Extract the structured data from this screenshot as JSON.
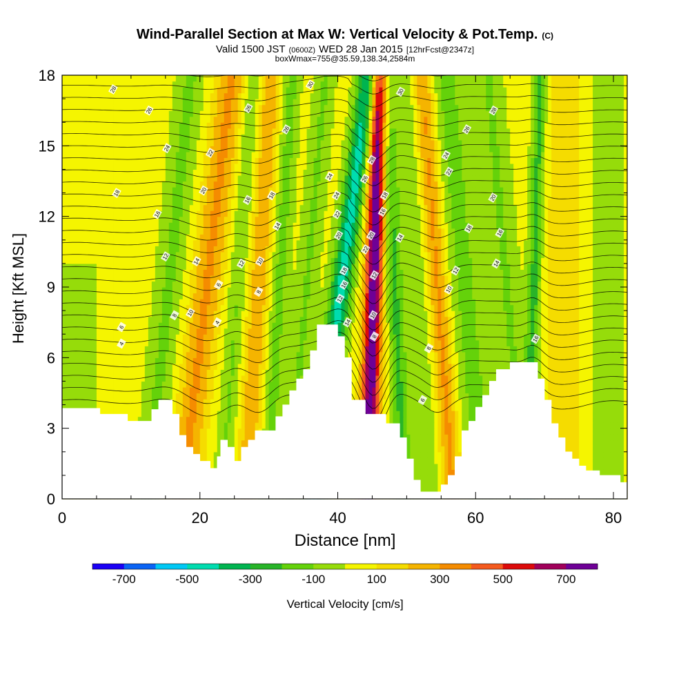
{
  "chart_data": {
    "type": "heatmap",
    "title": "Wind-Parallel Section at Max W: Vertical Velocity & Pot.Temp.",
    "title_mark": "(C)",
    "subtitle_parts": [
      "Valid 1500 JST",
      "(0600Z)",
      "WED 28 Jan 2015",
      "[12hrFcst@2347z]"
    ],
    "subtitle2": "boxWmax=755@35.59,138.34,2584m",
    "xlabel": "Distance [nm]",
    "ylabel": "Height [Kft MSL]",
    "xlim": [
      0,
      82
    ],
    "ylim": [
      0,
      18
    ],
    "x_ticks": [
      0,
      20,
      40,
      60,
      80
    ],
    "y_ticks": [
      0,
      3,
      6,
      9,
      12,
      15,
      18
    ],
    "colorbar": {
      "label": "Vertical Velocity [cm/s]",
      "ticks": [
        -700,
        -500,
        -300,
        -100,
        100,
        300,
        500,
        700
      ],
      "bins": [
        -800,
        -700,
        -600,
        -500,
        -400,
        -300,
        -200,
        -100,
        0,
        100,
        200,
        300,
        400,
        500,
        600,
        700,
        800
      ],
      "colors": [
        "#1a00f5",
        "#0a64f5",
        "#00c8f5",
        "#00dcaf",
        "#00b450",
        "#28b428",
        "#64d20a",
        "#96dc0a",
        "#f5f500",
        "#f5dc00",
        "#f5b400",
        "#f58c00",
        "#f55a1e",
        "#dc0a0a",
        "#a0005a",
        "#6e0096"
      ]
    },
    "terrain": [
      [
        0,
        3.85
      ],
      [
        5.5,
        3.85
      ],
      [
        5.5,
        3.6
      ],
      [
        9.5,
        3.6
      ],
      [
        9.5,
        3.3
      ],
      [
        13,
        3.3
      ],
      [
        13,
        3.8
      ],
      [
        14,
        3.8
      ],
      [
        14,
        4.2
      ],
      [
        16,
        4.2
      ],
      [
        16,
        3.6
      ],
      [
        17,
        3.6
      ],
      [
        17,
        2.7
      ],
      [
        18,
        2.7
      ],
      [
        18,
        2.2
      ],
      [
        19,
        2.2
      ],
      [
        19,
        1.9
      ],
      [
        20,
        1.9
      ],
      [
        20,
        1.6
      ],
      [
        21.5,
        1.6
      ],
      [
        21.5,
        1.3
      ],
      [
        22.5,
        1.3
      ],
      [
        22.5,
        1.8
      ],
      [
        23,
        1.8
      ],
      [
        23,
        2.5
      ],
      [
        24,
        2.5
      ],
      [
        24,
        2.2
      ],
      [
        25,
        2.2
      ],
      [
        25,
        1.6
      ],
      [
        26,
        1.6
      ],
      [
        26,
        2.2
      ],
      [
        27,
        2.2
      ],
      [
        27,
        2.5
      ],
      [
        28,
        2.5
      ],
      [
        28,
        2.9
      ],
      [
        31,
        2.9
      ],
      [
        31,
        3.5
      ],
      [
        32,
        3.5
      ],
      [
        32,
        4.0
      ],
      [
        33,
        4.0
      ],
      [
        33,
        4.6
      ],
      [
        34,
        4.6
      ],
      [
        34,
        5.1
      ],
      [
        35,
        5.1
      ],
      [
        35,
        5.5
      ],
      [
        36,
        5.5
      ],
      [
        36,
        6.3
      ],
      [
        37,
        6.3
      ],
      [
        37,
        7.4
      ],
      [
        40,
        7.4
      ],
      [
        40,
        6.9
      ],
      [
        41,
        6.9
      ],
      [
        41,
        6.0
      ],
      [
        42,
        6.0
      ],
      [
        42,
        4.2
      ],
      [
        44,
        4.2
      ],
      [
        44,
        3.6
      ],
      [
        47,
        3.6
      ],
      [
        47,
        3.2
      ],
      [
        49,
        3.2
      ],
      [
        49,
        2.6
      ],
      [
        50,
        2.6
      ],
      [
        50,
        1.7
      ],
      [
        51,
        1.7
      ],
      [
        51,
        0.8
      ],
      [
        52,
        0.8
      ],
      [
        52,
        0.3
      ],
      [
        55,
        0.3
      ],
      [
        55,
        0.6
      ],
      [
        56,
        0.6
      ],
      [
        56,
        1.0
      ],
      [
        57,
        1.0
      ],
      [
        57,
        1.8
      ],
      [
        58,
        1.8
      ],
      [
        58,
        2.9
      ],
      [
        59,
        2.9
      ],
      [
        59,
        3.3
      ],
      [
        60,
        3.3
      ],
      [
        60,
        3.9
      ],
      [
        61,
        3.9
      ],
      [
        61,
        4.4
      ],
      [
        62,
        4.4
      ],
      [
        62,
        5.0
      ],
      [
        63,
        5.0
      ],
      [
        63,
        5.5
      ],
      [
        65,
        5.5
      ],
      [
        65,
        5.8
      ],
      [
        69,
        5.8
      ],
      [
        69,
        5.1
      ],
      [
        70,
        5.1
      ],
      [
        70,
        4.2
      ],
      [
        71,
        4.2
      ],
      [
        71,
        3.2
      ],
      [
        72,
        3.2
      ],
      [
        72,
        2.6
      ],
      [
        73,
        2.6
      ],
      [
        73,
        2.0
      ],
      [
        74,
        2.0
      ],
      [
        74,
        1.7
      ],
      [
        75,
        1.7
      ],
      [
        75,
        1.4
      ],
      [
        76,
        1.4
      ],
      [
        76,
        1.2
      ],
      [
        78,
        1.2
      ],
      [
        78,
        1.0
      ],
      [
        81,
        1.0
      ],
      [
        81,
        0.7
      ],
      [
        82,
        0.7
      ]
    ],
    "w_field": {
      "background": 40,
      "bands": [
        {
          "x": 2,
          "w": -120,
          "half_width": 3,
          "y": [
            3.5,
            10
          ]
        },
        {
          "x": 15.5,
          "w": -160,
          "half_width": 2,
          "slope": 0.35
        },
        {
          "x": 21,
          "w": 280,
          "half_width": 2.2,
          "slope": 0.4
        },
        {
          "x": 25.5,
          "w": -150,
          "half_width": 1.4,
          "slope": 0.25
        },
        {
          "x": 28.5,
          "w": 240,
          "half_width": 1.6,
          "slope": 0.2
        },
        {
          "x": 31.5,
          "w": -180,
          "half_width": 1.3,
          "slope": 0.2
        },
        {
          "x": 35.5,
          "w": -150,
          "half_width": 1.5,
          "slope": 0.3
        },
        {
          "x": 40.5,
          "w": -480,
          "half_width": 1.6,
          "slope": 0.45
        },
        {
          "x": 45.2,
          "w": 755,
          "half_width": 1.3,
          "slope": 0.1
        },
        {
          "x": 48.3,
          "w": -260,
          "half_width": 1.2,
          "slope": -0.15
        },
        {
          "x": 51.5,
          "w": -120,
          "half_width": 1.6,
          "slope": -0.2
        },
        {
          "x": 54.5,
          "w": 280,
          "half_width": 1.4,
          "slope": -0.25
        },
        {
          "x": 58.5,
          "w": -180,
          "half_width": 2.2,
          "slope": -0.3
        },
        {
          "x": 64.5,
          "w": -150,
          "half_width": 2.0,
          "slope": -0.3
        },
        {
          "x": 68.5,
          "w": -280,
          "half_width": 1.0,
          "slope": 0.1
        },
        {
          "x": 73,
          "w": 120,
          "half_width": 3.0,
          "slope": 0.0
        },
        {
          "x": 79,
          "w": -120,
          "half_width": 2.5,
          "slope": 0.0
        }
      ]
    },
    "isotherm_labels": [
      {
        "x": 7.4,
        "y": 17.4,
        "t": "28"
      },
      {
        "x": 12.6,
        "y": 16.5,
        "t": "26"
      },
      {
        "x": 15.2,
        "y": 14.9,
        "t": "24"
      },
      {
        "x": 21.5,
        "y": 14.7,
        "t": "22"
      },
      {
        "x": 20.5,
        "y": 13.1,
        "t": "20"
      },
      {
        "x": 7.9,
        "y": 13.0,
        "t": "18"
      },
      {
        "x": 13.8,
        "y": 12.1,
        "t": "16"
      },
      {
        "x": 19.5,
        "y": 10.1,
        "t": "14"
      },
      {
        "x": 15,
        "y": 10.3,
        "t": "12"
      },
      {
        "x": 18.6,
        "y": 7.9,
        "t": "10"
      },
      {
        "x": 16.3,
        "y": 7.8,
        "t": "8"
      },
      {
        "x": 8.6,
        "y": 7.3,
        "t": "6"
      },
      {
        "x": 8.6,
        "y": 6.6,
        "t": "4"
      },
      {
        "x": 22.5,
        "y": 7.5,
        "t": "4"
      },
      {
        "x": 22.7,
        "y": 9.1,
        "t": "6"
      },
      {
        "x": 27,
        "y": 16.6,
        "t": "26"
      },
      {
        "x": 26.9,
        "y": 12.7,
        "t": "16"
      },
      {
        "x": 26,
        "y": 10.0,
        "t": "12"
      },
      {
        "x": 28.5,
        "y": 8.8,
        "t": "8"
      },
      {
        "x": 28.7,
        "y": 10.1,
        "t": "10"
      },
      {
        "x": 30.4,
        "y": 12.9,
        "t": "18"
      },
      {
        "x": 31.2,
        "y": 11.6,
        "t": "14"
      },
      {
        "x": 32.5,
        "y": 15.7,
        "t": "26"
      },
      {
        "x": 36,
        "y": 17.6,
        "t": "30"
      },
      {
        "x": 38.8,
        "y": 13.7,
        "t": "24"
      },
      {
        "x": 39.8,
        "y": 12.9,
        "t": "24"
      },
      {
        "x": 39.9,
        "y": 12.1,
        "t": "22"
      },
      {
        "x": 40.1,
        "y": 11.2,
        "t": "20"
      },
      {
        "x": 40.9,
        "y": 9.7,
        "t": "18"
      },
      {
        "x": 40.9,
        "y": 9.1,
        "t": "16"
      },
      {
        "x": 40.3,
        "y": 8.5,
        "t": "12"
      },
      {
        "x": 41.4,
        "y": 7.5,
        "t": "14"
      },
      {
        "x": 43.9,
        "y": 13.6,
        "t": "26"
      },
      {
        "x": 44.9,
        "y": 14.4,
        "t": "28"
      },
      {
        "x": 44.8,
        "y": 11.2,
        "t": "20"
      },
      {
        "x": 44,
        "y": 10.6,
        "t": "22"
      },
      {
        "x": 46.5,
        "y": 12.2,
        "t": "16"
      },
      {
        "x": 46.8,
        "y": 12.9,
        "t": "18"
      },
      {
        "x": 45.3,
        "y": 9.5,
        "t": "12"
      },
      {
        "x": 45.1,
        "y": 7.8,
        "t": "10"
      },
      {
        "x": 45.3,
        "y": 6.9,
        "t": "8"
      },
      {
        "x": 49.1,
        "y": 17.3,
        "t": "30"
      },
      {
        "x": 49,
        "y": 11.1,
        "t": "14"
      },
      {
        "x": 55.7,
        "y": 14.6,
        "t": "24"
      },
      {
        "x": 56.1,
        "y": 13.9,
        "t": "22"
      },
      {
        "x": 58.7,
        "y": 15.7,
        "t": "26"
      },
      {
        "x": 62.6,
        "y": 16.5,
        "t": "28"
      },
      {
        "x": 62.5,
        "y": 12.8,
        "t": "20"
      },
      {
        "x": 59,
        "y": 11.5,
        "t": "18"
      },
      {
        "x": 63.5,
        "y": 11.3,
        "t": "16"
      },
      {
        "x": 63,
        "y": 10.0,
        "t": "14"
      },
      {
        "x": 57.1,
        "y": 9.7,
        "t": "12"
      },
      {
        "x": 56.1,
        "y": 8.9,
        "t": "10"
      },
      {
        "x": 53.2,
        "y": 6.4,
        "t": "8"
      },
      {
        "x": 52.3,
        "y": 4.2,
        "t": "6"
      },
      {
        "x": 68.7,
        "y": 6.8,
        "t": "16"
      }
    ]
  }
}
